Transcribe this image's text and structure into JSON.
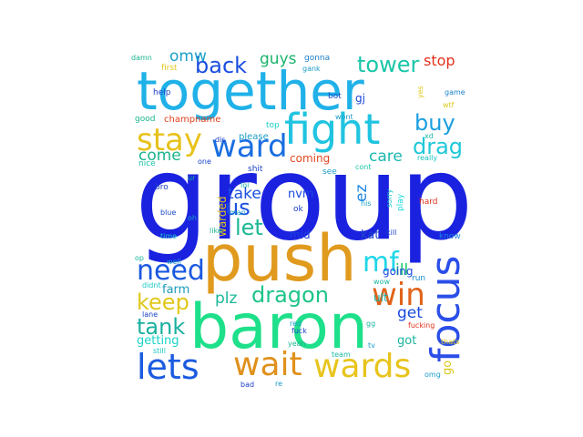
{
  "words": [
    {
      "text": "group",
      "color": "#1a22e0"
    },
    {
      "text": "together",
      "color": "#1fb1e8"
    },
    {
      "text": "push",
      "color": "#e09a1e"
    },
    {
      "text": "baron",
      "color": "#1ee08a"
    },
    {
      "text": "fight",
      "color": "#20c4e0"
    },
    {
      "text": "focus",
      "color": "#2a4ee8"
    },
    {
      "text": "stay",
      "color": "#e8c21c"
    },
    {
      "text": "ward",
      "color": "#1a6ee0"
    },
    {
      "text": "wards",
      "color": "#e8c41c"
    },
    {
      "text": "wait",
      "color": "#e0901c"
    },
    {
      "text": "lets",
      "color": "#1a5be0"
    },
    {
      "text": "win",
      "color": "#e0621a"
    },
    {
      "text": "mf",
      "color": "#1ed6e8"
    },
    {
      "text": "need",
      "color": "#1a58e0"
    },
    {
      "text": "back",
      "color": "#1a4ee0"
    },
    {
      "text": "tower",
      "color": "#1ac6a8"
    },
    {
      "text": "buy",
      "color": "#1a9ee0"
    },
    {
      "text": "drag",
      "color": "#20c8d8"
    },
    {
      "text": "dragon",
      "color": "#1ec488"
    },
    {
      "text": "keep",
      "color": "#e0c81c"
    },
    {
      "text": "tank",
      "color": "#1ab0a0"
    },
    {
      "text": "us",
      "color": "#1a50e0"
    },
    {
      "text": "let",
      "color": "#1ab894"
    },
    {
      "text": "take",
      "color": "#1a4ee0"
    },
    {
      "text": "come",
      "color": "#1ab48c"
    },
    {
      "text": "care",
      "color": "#1ab8b0"
    },
    {
      "text": "omw",
      "color": "#1aa0c8"
    },
    {
      "text": "guys",
      "color": "#1ab46c"
    },
    {
      "text": "stop",
      "color": "#e0301a"
    },
    {
      "text": "get",
      "color": "#1a48e0"
    },
    {
      "text": "ill",
      "color": "#1ac868"
    },
    {
      "text": "plz",
      "color": "#1ab898"
    },
    {
      "text": "ez",
      "color": "#1a84e0"
    },
    {
      "text": "nvm",
      "color": "#1a48e0"
    },
    {
      "text": "kat",
      "color": "#1a48c8"
    },
    {
      "text": "go",
      "color": "#e0c81c"
    },
    {
      "text": "ult",
      "color": "#1ab0a8"
    },
    {
      "text": "got",
      "color": "#1ab4a0"
    },
    {
      "text": "getting",
      "color": "#1ad4c8"
    },
    {
      "text": "farm",
      "color": "#1a9cb8"
    },
    {
      "text": "coming",
      "color": "#e04820"
    },
    {
      "text": "mid",
      "color": "#1a40e0"
    },
    {
      "text": "going",
      "color": "#1a48e0"
    },
    {
      "text": "warded",
      "color": "#e0c81c"
    },
    {
      "text": "gj",
      "color": "#1a48e0"
    },
    {
      "text": "champname",
      "color": "#e0401a"
    },
    {
      "text": "please",
      "color": "#1a9cc8"
    },
    {
      "text": "shit",
      "color": "#1a40c8"
    },
    {
      "text": "hard",
      "color": "#e0301a"
    },
    {
      "text": "play",
      "color": "#1ad8e0"
    },
    {
      "text": "run",
      "color": "#1a8cc8"
    },
    {
      "text": "know",
      "color": "#1a84e0"
    },
    {
      "text": "gonna",
      "color": "#1a7cc8"
    },
    {
      "text": "gank",
      "color": "#1a9cc8"
    },
    {
      "text": "bot",
      "color": "#1a48c8"
    },
    {
      "text": "first",
      "color": "#e0c81c"
    },
    {
      "text": "help",
      "color": "#1a40c8"
    },
    {
      "text": "nice",
      "color": "#1ac0a8"
    },
    {
      "text": "good",
      "color": "#1ab490"
    },
    {
      "text": "damn",
      "color": "#1ab490"
    },
    {
      "text": "one",
      "color": "#1a40c8"
    },
    {
      "text": "top",
      "color": "#1ad0c8"
    },
    {
      "text": "wont",
      "color": "#1a9cc8"
    },
    {
      "text": "see",
      "color": "#1a9cc8"
    },
    {
      "text": "cont",
      "color": "#1ac8a8"
    },
    {
      "text": "really",
      "color": "#1ac0c0"
    },
    {
      "text": "sorry",
      "color": "#1ac8c8"
    },
    {
      "text": "nis",
      "color": "#1a9cc8"
    },
    {
      "text": "kill",
      "color": "#1a40c8"
    },
    {
      "text": "wow",
      "color": "#1ab4a0"
    },
    {
      "text": "xd",
      "color": "#1ab8a0"
    },
    {
      "text": "game",
      "color": "#1a84c8"
    },
    {
      "text": "yes",
      "color": "#e0c81c"
    },
    {
      "text": "wtf",
      "color": "#e0c81c"
    },
    {
      "text": "bro",
      "color": "#1a40c8"
    },
    {
      "text": "ur",
      "color": "#1ab490"
    },
    {
      "text": "blue",
      "color": "#1a48c8"
    },
    {
      "text": "oh",
      "color": "#1a9cc8"
    },
    {
      "text": "lol",
      "color": "#1ab4a0"
    },
    {
      "text": "man",
      "color": "#1a9cc8"
    },
    {
      "text": "ok",
      "color": "#1a40c8"
    },
    {
      "text": "like",
      "color": "#1ab490"
    },
    {
      "text": "well",
      "color": "#1a9cc8"
    },
    {
      "text": "time",
      "color": "#1ac8c8"
    },
    {
      "text": "op",
      "color": "#1ab4a0"
    },
    {
      "text": "didnt",
      "color": "#1ac8c8"
    },
    {
      "text": "lane",
      "color": "#1a40c8"
    },
    {
      "text": "still",
      "color": "#1ac8c8"
    },
    {
      "text": "bad",
      "color": "#1a40c8"
    },
    {
      "text": "fuck",
      "color": "#1a40c8"
    },
    {
      "text": "red",
      "color": "#1a9cc8"
    },
    {
      "text": "gg",
      "color": "#1ab4a0"
    },
    {
      "text": "fucking",
      "color": "#e0301a"
    },
    {
      "text": "yeah",
      "color": "#1ab490"
    },
    {
      "text": "re",
      "color": "#1a9cc8"
    },
    {
      "text": "team",
      "color": "#1ab8a0"
    },
    {
      "text": "tv",
      "color": "#1a9cc8"
    },
    {
      "text": "thats",
      "color": "#e0c81c"
    },
    {
      "text": "omg",
      "color": "#1a9cc8"
    },
    {
      "text": "dis",
      "color": "#1a40c8"
    }
  ]
}
